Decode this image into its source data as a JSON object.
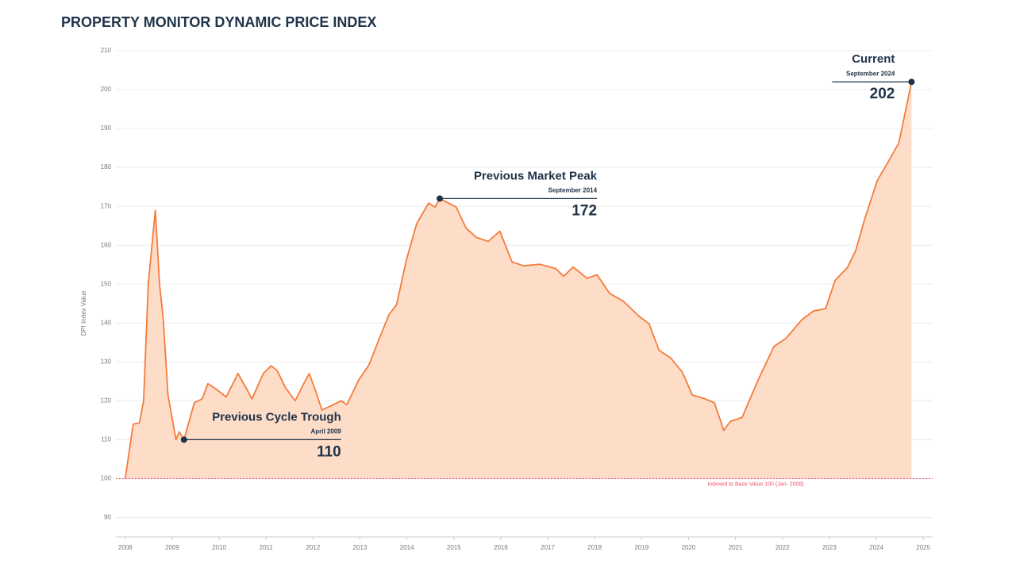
{
  "chart_data": {
    "type": "area",
    "title": "PROPERTY MONITOR DYNAMIC PRICE INDEX",
    "y_label": "DPI Index Value",
    "color": "#f47c3c",
    "fill": "#fddcc8",
    "x": [
      2008.0,
      2008.12,
      2008.17,
      2008.3,
      2008.39,
      2008.49,
      2008.64,
      2008.73,
      2008.81,
      2008.91,
      2009.08,
      2009.15,
      2009.25,
      2009.47,
      2009.64,
      2009.76,
      2009.89,
      2010.15,
      2010.4,
      2010.57,
      2010.7,
      2010.94,
      2011.11,
      2011.24,
      2011.41,
      2011.62,
      2011.8,
      2011.92,
      2012.06,
      2012.19,
      2012.6,
      2012.72,
      2012.97,
      2013.19,
      2013.41,
      2013.62,
      2013.78,
      2013.99,
      2014.21,
      2014.46,
      2014.6,
      2014.7,
      2015.05,
      2015.26,
      2015.48,
      2015.73,
      2015.98,
      2016.24,
      2016.49,
      2016.83,
      2017.17,
      2017.34,
      2017.54,
      2017.84,
      2018.05,
      2018.32,
      2018.61,
      2018.94,
      2019.16,
      2019.37,
      2019.62,
      2019.87,
      2020.08,
      2020.35,
      2020.55,
      2020.75,
      2020.89,
      2021.14,
      2021.48,
      2021.82,
      2022.07,
      2022.41,
      2022.66,
      2022.92,
      2023.12,
      2023.39,
      2023.56,
      2023.76,
      2024.02,
      2024.27,
      2024.48,
      2024.75
    ],
    "values": [
      100,
      110,
      114,
      114.3,
      120,
      150,
      169,
      150,
      141,
      121.5,
      110,
      112,
      110,
      119.5,
      120.5,
      124.4,
      123.4,
      121,
      127,
      123.4,
      120.5,
      127,
      129,
      127.7,
      123.4,
      120,
      124.4,
      127,
      122.4,
      117.6,
      120,
      119,
      125.3,
      129.2,
      136,
      142.2,
      144.7,
      156.3,
      165.6,
      170.8,
      169.8,
      172,
      169.8,
      164.4,
      162,
      161,
      163.6,
      155.7,
      154.7,
      155.1,
      154,
      152,
      154.4,
      151.5,
      152.4,
      147.6,
      145.6,
      141.8,
      139.8,
      133,
      131,
      127.3,
      121.5,
      120.5,
      119.5,
      112.4,
      114.7,
      115.7,
      125.3,
      134,
      136,
      140.8,
      143.1,
      143.7,
      150.9,
      154.4,
      158.6,
      167,
      176.6,
      181.8,
      186.3,
      202
    ],
    "xlim": [
      2007.8,
      2025.2
    ],
    "xticks": [
      2008,
      2009,
      2010,
      2011,
      2012,
      2013,
      2014,
      2015,
      2016,
      2017,
      2018,
      2019,
      2020,
      2021,
      2022,
      2023,
      2024,
      2025
    ],
    "ylim": [
      85,
      210
    ],
    "yticks": [
      90,
      100,
      110,
      120,
      130,
      140,
      150,
      160,
      170,
      180,
      190,
      200,
      210
    ],
    "grid": true,
    "baseline": {
      "value": 100,
      "label": "Indexed to Base Value 100  (Jan- 2008)",
      "color": "#f0506e"
    },
    "annotations": [
      {
        "title": "Previous Cycle Trough",
        "date": "April 2009",
        "value": 110,
        "x": 2009.25,
        "side": "right"
      },
      {
        "title": "Previous Market Peak",
        "date": "September 2014",
        "value": 172,
        "x": 2014.7,
        "side": "right"
      },
      {
        "title": "Current",
        "date": "September 2024",
        "value": 202,
        "x": 2024.75,
        "side": "left"
      }
    ]
  }
}
